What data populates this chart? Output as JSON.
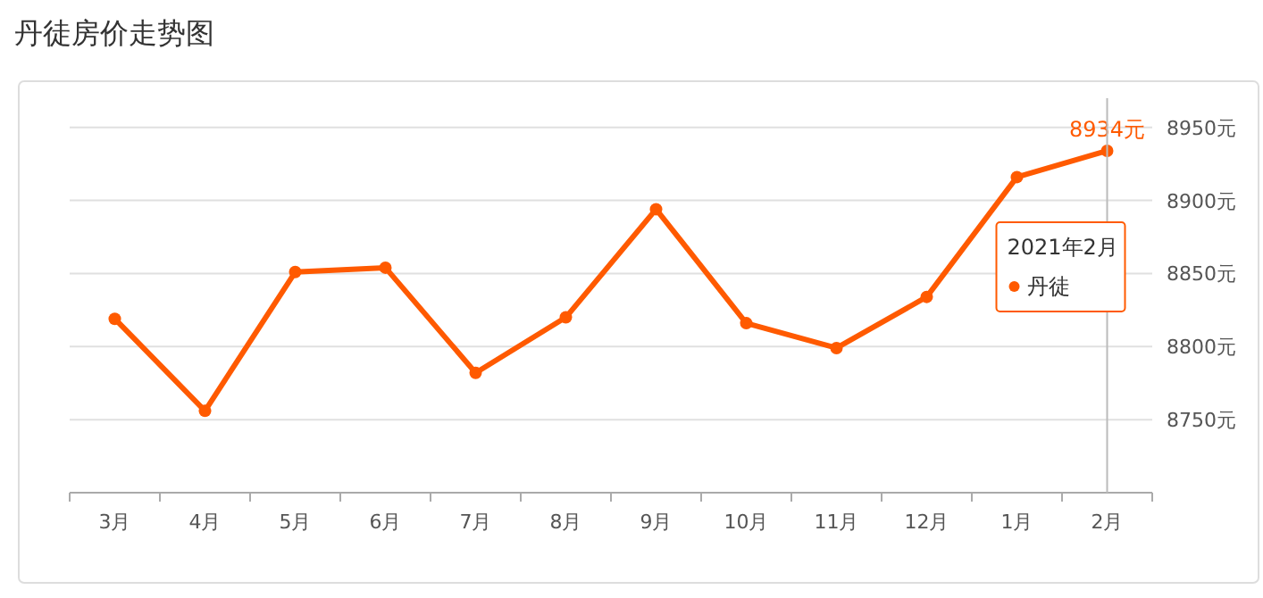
{
  "chart_data": {
    "type": "line",
    "title": "丹徒房价走势图",
    "categories": [
      "3月",
      "4月",
      "5月",
      "6月",
      "7月",
      "8月",
      "9月",
      "10月",
      "11月",
      "12月",
      "1月",
      "2月"
    ],
    "series": [
      {
        "name": "丹徒",
        "color": "#ff5a00",
        "values": [
          8819,
          8756,
          8851,
          8854,
          8782,
          8820,
          8894,
          8816,
          8799,
          8834,
          8916,
          8934
        ],
        "value_labels": [
          null,
          null,
          null,
          null,
          null,
          null,
          null,
          null,
          null,
          null,
          null,
          "8934元"
        ]
      }
    ],
    "annotations": [
      "2021年2月"
    ],
    "ylim": [
      8700,
      8970
    ],
    "yticks": [
      {
        "value": 8750,
        "label": "8750元"
      },
      {
        "value": 8800,
        "label": "8800元"
      },
      {
        "value": 8850,
        "label": "8850元"
      },
      {
        "value": 8900,
        "label": "8900元"
      },
      {
        "value": 8950,
        "label": "8950元"
      }
    ],
    "ref_lines": [
      {
        "axis": "x",
        "value": "2月",
        "color": "#bbbbbb"
      }
    ],
    "grid": "y",
    "marker": "circle",
    "legend": "right"
  }
}
